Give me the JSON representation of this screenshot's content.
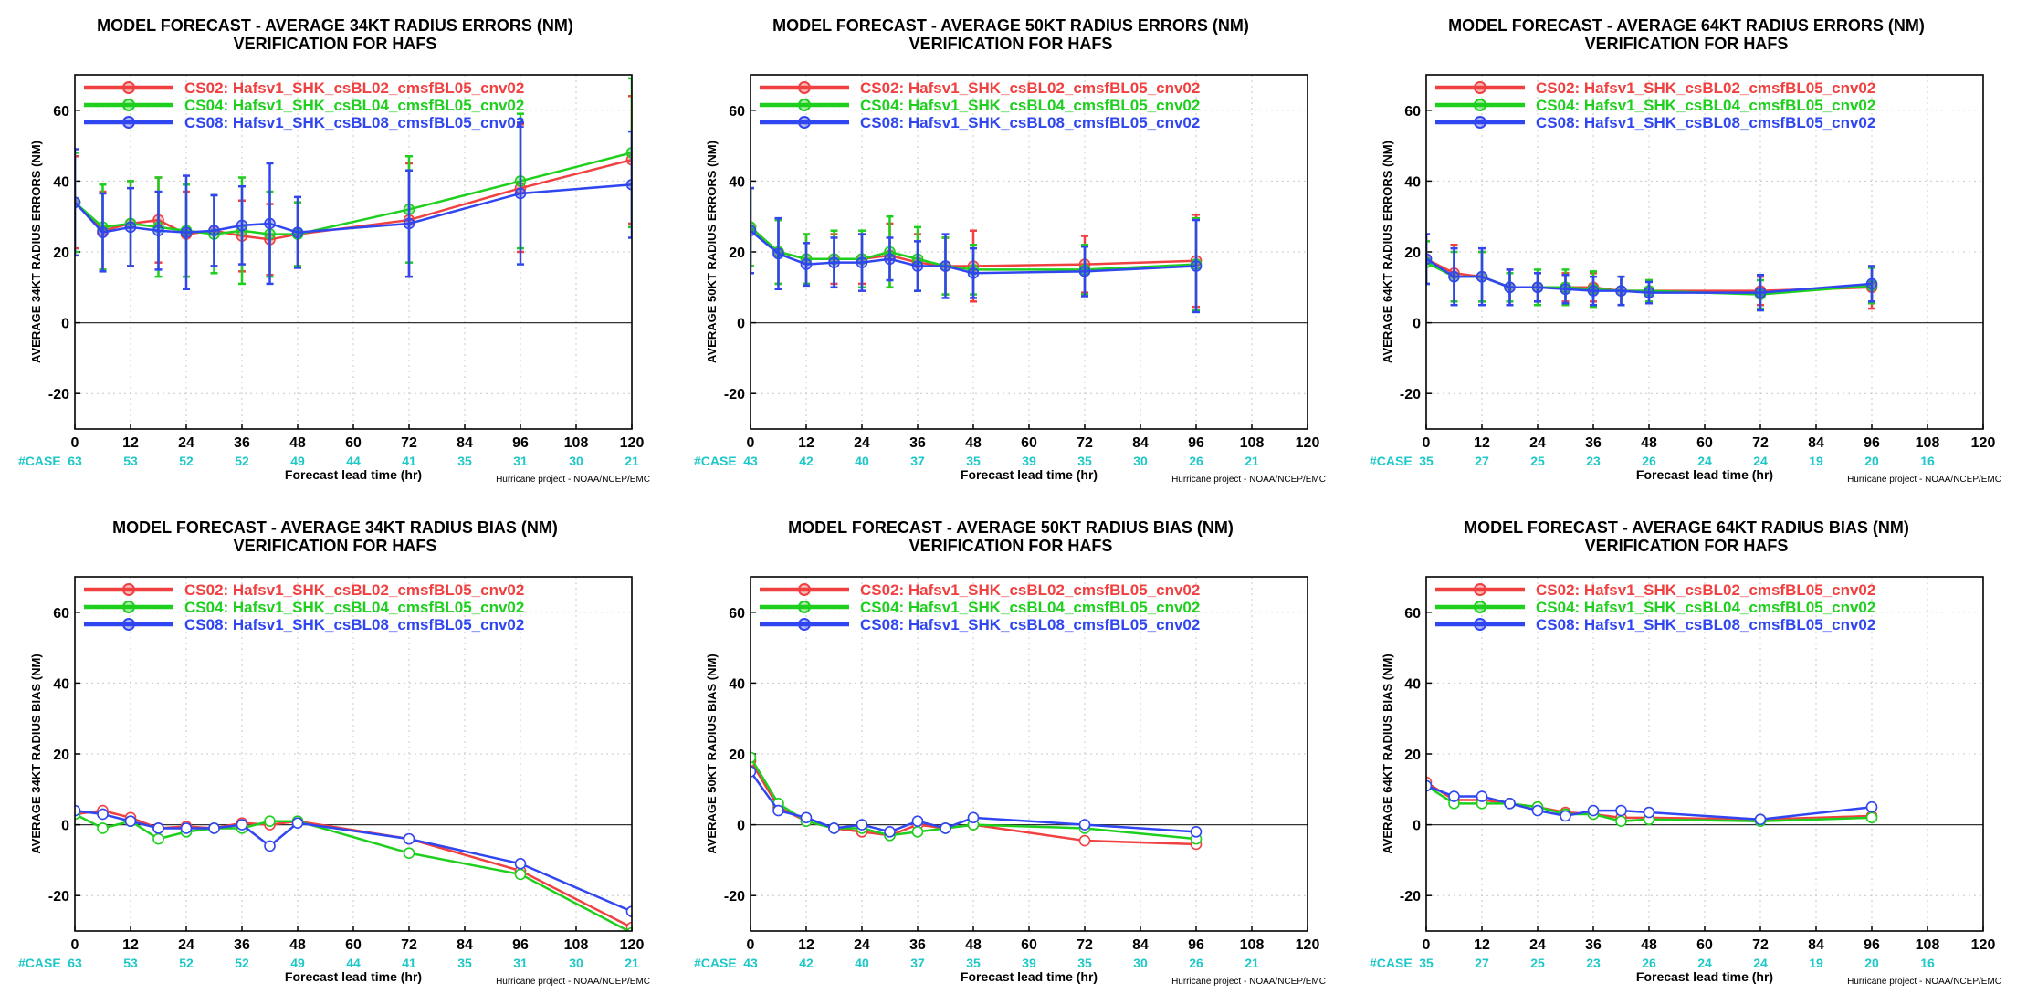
{
  "case_label": "#CASE",
  "xlabel": "Forecast lead time (hr)",
  "credit": "Hurricane project - NOAA/NCEP/EMC",
  "colors": {
    "CS02": "#f04040",
    "CS04": "#1ecf1e",
    "CS08": "#3046f0",
    "case": "#1ec8c8"
  },
  "legend": [
    {
      "key": "CS02",
      "label": "CS02: Hafsv1_SHK_csBL02_cmsfBL05_cnv02"
    },
    {
      "key": "CS04",
      "label": "CS04: Hafsv1_SHK_csBL04_cmsfBL05_cnv02"
    },
    {
      "key": "CS08",
      "label": "CS08: Hafsv1_SHK_csBL08_cmsfBL05_cnv02"
    }
  ],
  "chart_data": [
    {
      "type": "line",
      "title": "MODEL FORECAST - AVERAGE 34KT RADIUS ERRORS (NM)",
      "subtitle": "VERIFICATION FOR HAFS",
      "ylabel": "AVERAGE 34KT RADIUS ERRORS (NM)",
      "xlabel": "Forecast lead time (hr)",
      "xlim": [
        0,
        120
      ],
      "ylim": [
        -30,
        70
      ],
      "xticks": [
        0,
        12,
        24,
        36,
        48,
        60,
        72,
        84,
        96,
        108,
        120
      ],
      "yticks": [
        -20,
        0,
        20,
        40,
        60
      ],
      "grid": true,
      "error_bars": true,
      "legend_position": "top-left",
      "case_counts": [
        63,
        53,
        52,
        52,
        49,
        44,
        41,
        35,
        31,
        30,
        21
      ],
      "series": [
        {
          "key": "CS02",
          "x": [
            0,
            6,
            12,
            18,
            24,
            30,
            36,
            42,
            48,
            72,
            96,
            120
          ],
          "y": [
            34,
            26,
            28,
            29,
            25,
            26,
            24.5,
            23.5,
            25,
            29,
            38,
            46
          ],
          "err": [
            13,
            11,
            12,
            12,
            12,
            10,
            10,
            10,
            9,
            16,
            18,
            18
          ]
        },
        {
          "key": "CS04",
          "x": [
            0,
            6,
            12,
            18,
            24,
            30,
            36,
            42,
            48,
            72,
            96,
            120
          ],
          "y": [
            34,
            27,
            28,
            27,
            26,
            25,
            26,
            25,
            25,
            32,
            40,
            48
          ],
          "err": [
            14,
            12,
            12,
            14,
            13,
            11,
            15,
            12,
            9,
            15,
            19,
            21
          ]
        },
        {
          "key": "CS08",
          "x": [
            0,
            6,
            12,
            18,
            24,
            30,
            36,
            42,
            48,
            72,
            96,
            120
          ],
          "y": [
            34,
            25.5,
            27,
            26,
            25.5,
            26,
            27.5,
            28,
            25.5,
            28,
            36.5,
            39
          ],
          "err": [
            15,
            11,
            11,
            11,
            16,
            10,
            11,
            17,
            10,
            15,
            20,
            15
          ]
        }
      ]
    },
    {
      "type": "line",
      "title": "MODEL FORECAST - AVERAGE 50KT RADIUS ERRORS (NM)",
      "subtitle": "VERIFICATION FOR HAFS",
      "ylabel": "AVERAGE 50KT RADIUS ERRORS (NM)",
      "xlabel": "Forecast lead time (hr)",
      "xlim": [
        0,
        120
      ],
      "ylim": [
        -30,
        70
      ],
      "xticks": [
        0,
        12,
        24,
        36,
        48,
        60,
        72,
        84,
        96,
        108,
        120
      ],
      "yticks": [
        -20,
        0,
        20,
        40,
        60
      ],
      "grid": true,
      "error_bars": true,
      "legend_position": "top-left",
      "case_counts": [
        43,
        42,
        40,
        37,
        35,
        39,
        35,
        30,
        26,
        21
      ],
      "series": [
        {
          "key": "CS02",
          "x": [
            0,
            6,
            12,
            18,
            24,
            30,
            36,
            42,
            48,
            72,
            96
          ],
          "y": [
            27,
            20,
            18,
            18,
            18,
            19,
            17,
            16,
            16,
            16.5,
            17.5
          ],
          "err": [
            11,
            9,
            7,
            7,
            7,
            9,
            8,
            8,
            10,
            8,
            13
          ]
        },
        {
          "key": "CS04",
          "x": [
            0,
            6,
            12,
            18,
            24,
            30,
            36,
            42,
            48,
            72,
            96
          ],
          "y": [
            27,
            20,
            18,
            18,
            18,
            20,
            18,
            16,
            15,
            15,
            16.5
          ],
          "err": [
            11,
            9,
            7,
            8,
            8,
            10,
            9,
            8,
            7,
            7,
            13
          ]
        },
        {
          "key": "CS08",
          "x": [
            0,
            6,
            12,
            18,
            24,
            30,
            36,
            42,
            48,
            72,
            96
          ],
          "y": [
            26,
            19.5,
            16.5,
            17,
            17,
            18,
            16,
            16,
            14,
            14.5,
            16
          ],
          "err": [
            12,
            10,
            6,
            7,
            8,
            6,
            7,
            9,
            7,
            7,
            13
          ]
        }
      ]
    },
    {
      "type": "line",
      "title": "MODEL FORECAST - AVERAGE 64KT RADIUS ERRORS (NM)",
      "subtitle": "VERIFICATION FOR HAFS",
      "ylabel": "AVERAGE 64KT RADIUS ERRORS (NM)",
      "xlabel": "Forecast lead time (hr)",
      "xlim": [
        0,
        120
      ],
      "ylim": [
        -30,
        70
      ],
      "xticks": [
        0,
        12,
        24,
        36,
        48,
        60,
        72,
        84,
        96,
        108,
        120
      ],
      "yticks": [
        -20,
        0,
        20,
        40,
        60
      ],
      "grid": true,
      "error_bars": true,
      "legend_position": "top-left",
      "case_counts": [
        35,
        27,
        25,
        23,
        26,
        24,
        24,
        19,
        20,
        16
      ],
      "series": [
        {
          "key": "CS02",
          "x": [
            0,
            6,
            12,
            18,
            24,
            30,
            36,
            42,
            48,
            72,
            96
          ],
          "y": [
            18,
            14,
            13,
            10,
            10,
            10,
            10,
            9,
            9,
            9,
            10
          ],
          "err": [
            7,
            8,
            7,
            5,
            4,
            4,
            4,
            4,
            3,
            4,
            6
          ]
        },
        {
          "key": "CS04",
          "x": [
            0,
            6,
            12,
            18,
            24,
            30,
            36,
            42,
            48,
            72,
            96
          ],
          "y": [
            17,
            13,
            13,
            10,
            10,
            10,
            9.5,
            9,
            9,
            8,
            10.5
          ],
          "err": [
            6,
            7,
            7,
            4,
            5,
            5,
            5,
            4,
            3,
            4,
            5
          ]
        },
        {
          "key": "CS08",
          "x": [
            0,
            6,
            12,
            18,
            24,
            30,
            36,
            42,
            48,
            72,
            96
          ],
          "y": [
            18,
            13,
            13,
            10,
            10,
            9.5,
            9,
            9,
            8.5,
            8.5,
            11
          ],
          "err": [
            7,
            8,
            8,
            5,
            4,
            4,
            4,
            4,
            3,
            5,
            5
          ]
        }
      ]
    },
    {
      "type": "line",
      "title": "MODEL FORECAST - AVERAGE 34KT RADIUS BIAS (NM)",
      "subtitle": "VERIFICATION FOR HAFS",
      "ylabel": "AVERAGE 34KT RADIUS BIAS (NM)",
      "xlabel": "Forecast lead time (hr)",
      "xlim": [
        0,
        120
      ],
      "ylim": [
        -30,
        70
      ],
      "xticks": [
        0,
        12,
        24,
        36,
        48,
        60,
        72,
        84,
        96,
        108,
        120
      ],
      "yticks": [
        -20,
        0,
        20,
        40,
        60
      ],
      "grid": true,
      "error_bars": false,
      "legend_position": "top-left",
      "case_counts": [
        63,
        53,
        52,
        52,
        49,
        44,
        41,
        35,
        31,
        30,
        21
      ],
      "series": [
        {
          "key": "CS02",
          "x": [
            0,
            6,
            12,
            18,
            24,
            30,
            36,
            42,
            48,
            72,
            96,
            120
          ],
          "y": [
            3,
            4,
            2,
            -1,
            -0.5,
            -1,
            0.5,
            0,
            1,
            -4,
            -13,
            -29
          ],
          "err": []
        },
        {
          "key": "CS04",
          "x": [
            0,
            6,
            12,
            18,
            24,
            30,
            36,
            42,
            48,
            72,
            96,
            120
          ],
          "y": [
            3,
            -1,
            1,
            -4,
            -2,
            -1,
            -1,
            1,
            1,
            -8,
            -14,
            -30.5
          ],
          "err": []
        },
        {
          "key": "CS08",
          "x": [
            0,
            6,
            12,
            18,
            24,
            30,
            36,
            42,
            48,
            72,
            96,
            120
          ],
          "y": [
            4,
            3,
            1,
            -1,
            -1,
            -1,
            0,
            -6,
            0.5,
            -4,
            -11,
            -24.5
          ],
          "err": []
        }
      ]
    },
    {
      "type": "line",
      "title": "MODEL FORECAST - AVERAGE 50KT RADIUS BIAS (NM)",
      "subtitle": "VERIFICATION FOR HAFS",
      "ylabel": "AVERAGE 50KT RADIUS BIAS (NM)",
      "xlabel": "Forecast lead time (hr)",
      "xlim": [
        0,
        120
      ],
      "ylim": [
        -30,
        70
      ],
      "xticks": [
        0,
        12,
        24,
        36,
        48,
        60,
        72,
        84,
        96,
        108,
        120
      ],
      "yticks": [
        -20,
        0,
        20,
        40,
        60
      ],
      "grid": true,
      "error_bars": false,
      "legend_position": "top-left",
      "case_counts": [
        43,
        42,
        40,
        37,
        35,
        39,
        35,
        30,
        26,
        21
      ],
      "series": [
        {
          "key": "CS02",
          "x": [
            0,
            6,
            12,
            18,
            24,
            30,
            36,
            42,
            48,
            72,
            96
          ],
          "y": [
            18,
            5,
            1,
            -1,
            -2,
            -3,
            0,
            -1,
            0,
            -4.5,
            -5.5
          ],
          "err": []
        },
        {
          "key": "CS04",
          "x": [
            0,
            6,
            12,
            18,
            24,
            30,
            36,
            42,
            48,
            72,
            96
          ],
          "y": [
            19,
            6,
            1,
            -1,
            -1,
            -3,
            -2,
            -1,
            0,
            -1,
            -4
          ],
          "err": []
        },
        {
          "key": "CS08",
          "x": [
            0,
            6,
            12,
            18,
            24,
            30,
            36,
            42,
            48,
            72,
            96
          ],
          "y": [
            15,
            4,
            2,
            -1,
            0,
            -2,
            1,
            -1,
            2,
            0,
            -2
          ],
          "err": []
        }
      ]
    },
    {
      "type": "line",
      "title": "MODEL FORECAST - AVERAGE 64KT RADIUS BIAS (NM)",
      "subtitle": "VERIFICATION FOR HAFS",
      "ylabel": "AVERAGE 64KT RADIUS BIAS (NM)",
      "xlabel": "Forecast lead time (hr)",
      "xlim": [
        0,
        120
      ],
      "ylim": [
        -30,
        70
      ],
      "xticks": [
        0,
        12,
        24,
        36,
        48,
        60,
        72,
        84,
        96,
        108,
        120
      ],
      "yticks": [
        -20,
        0,
        20,
        40,
        60
      ],
      "grid": true,
      "error_bars": false,
      "legend_position": "top-left",
      "case_counts": [
        35,
        27,
        25,
        23,
        26,
        24,
        24,
        19,
        20,
        16
      ],
      "series": [
        {
          "key": "CS02",
          "x": [
            0,
            6,
            12,
            18,
            24,
            30,
            36,
            42,
            48,
            72,
            96
          ],
          "y": [
            12,
            7,
            7,
            6,
            5,
            3.5,
            3,
            2,
            2,
            1.5,
            2.5
          ],
          "err": []
        },
        {
          "key": "CS04",
          "x": [
            0,
            6,
            12,
            18,
            24,
            30,
            36,
            42,
            48,
            72,
            96
          ],
          "y": [
            11,
            6,
            6,
            6,
            5,
            3,
            3,
            1,
            1.5,
            1,
            2
          ],
          "err": []
        },
        {
          "key": "CS08",
          "x": [
            0,
            6,
            12,
            18,
            24,
            30,
            36,
            42,
            48,
            72,
            96
          ],
          "y": [
            11,
            8,
            8,
            6,
            4,
            2.5,
            4,
            4,
            3.5,
            1.5,
            5
          ],
          "err": []
        }
      ]
    }
  ]
}
